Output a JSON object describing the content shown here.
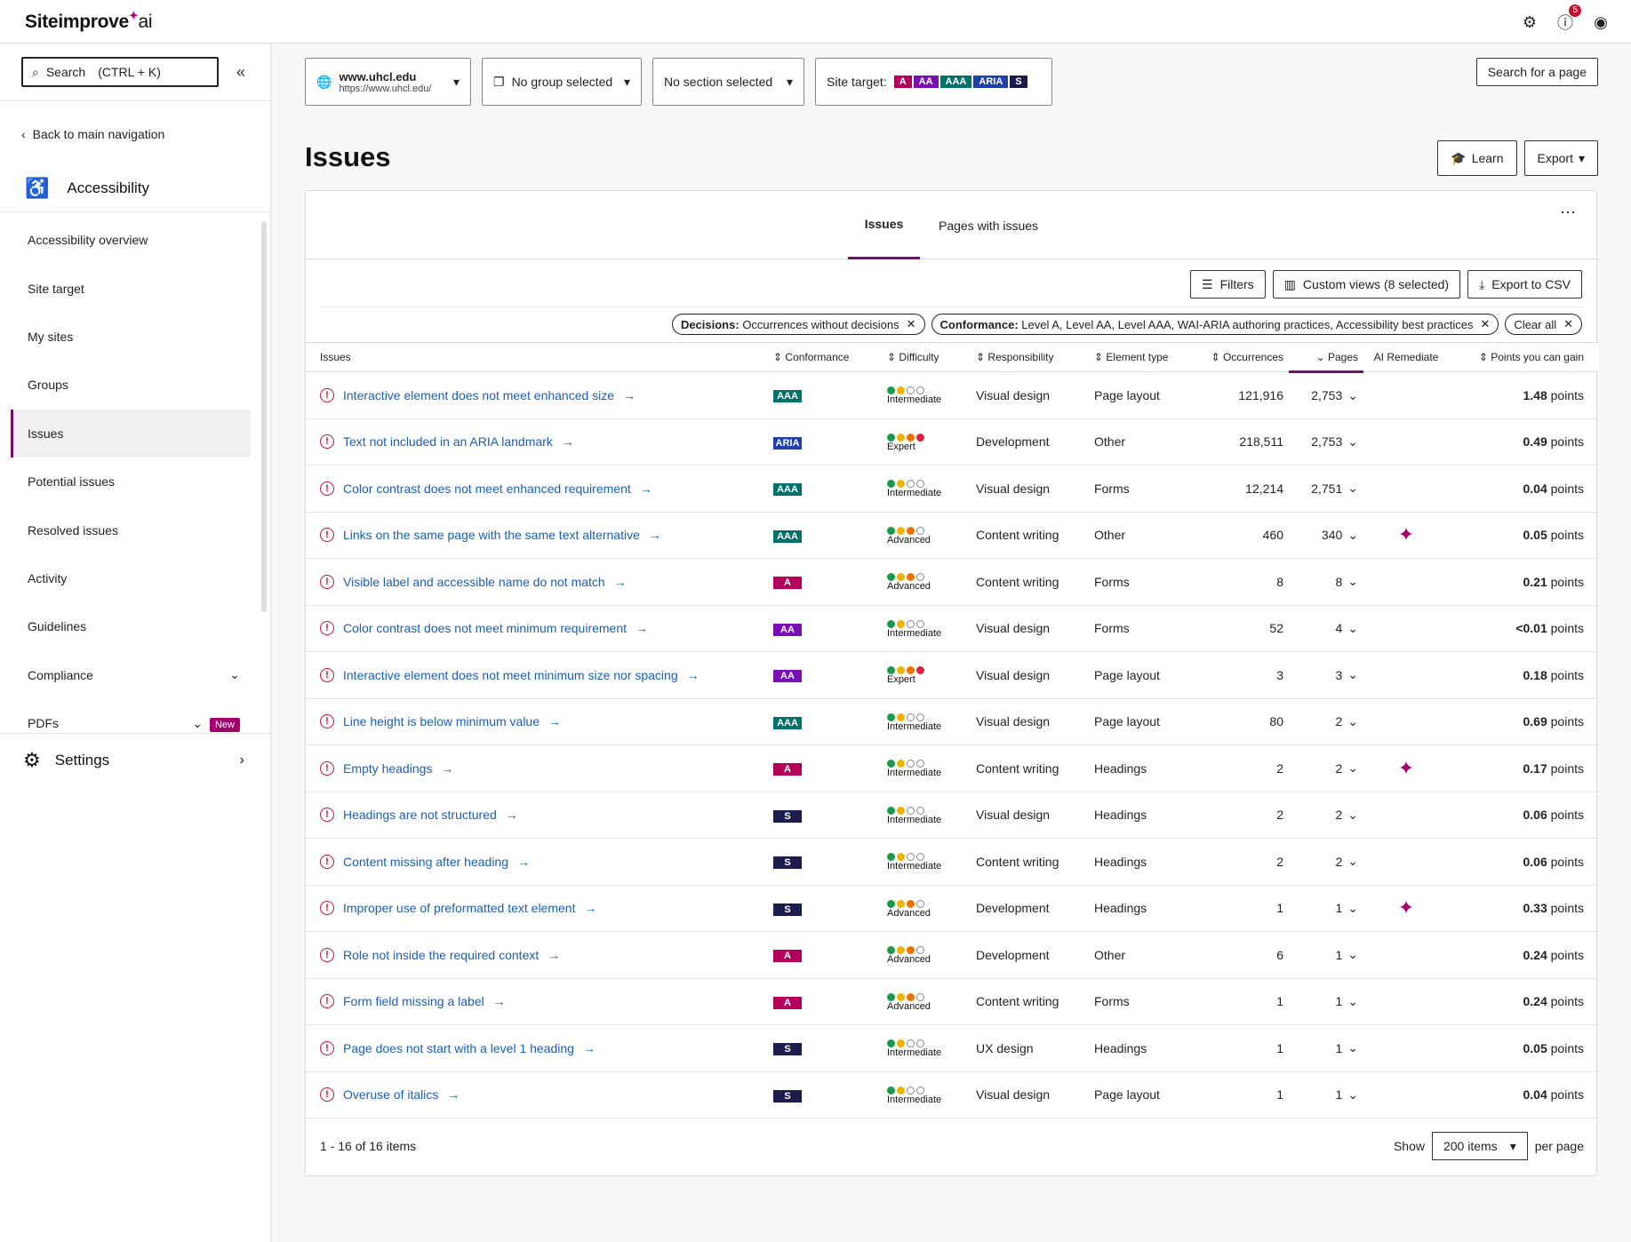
{
  "app": {
    "logo": "Siteimprove",
    "logo_suffix": "ai",
    "notif_count": "5"
  },
  "sidebar": {
    "search_label": "Search",
    "search_shortcut": "(CTRL + K)",
    "back": "Back to main navigation",
    "section": "Accessibility",
    "items": [
      {
        "label": "Accessibility overview"
      },
      {
        "label": "Site target"
      },
      {
        "label": "My sites"
      },
      {
        "label": "Groups"
      },
      {
        "label": "Issues"
      },
      {
        "label": "Potential issues"
      },
      {
        "label": "Resolved issues"
      },
      {
        "label": "Activity"
      },
      {
        "label": "Guidelines"
      },
      {
        "label": "Compliance"
      },
      {
        "label": "PDFs",
        "badge": "New"
      }
    ],
    "settings": "Settings"
  },
  "filters": {
    "site_name": "www.uhcl.edu",
    "site_url": "https://www.uhcl.edu/",
    "group": "No group selected",
    "section": "No section selected",
    "site_target_label": "Site target:",
    "targets": [
      {
        "label": "A",
        "color": "#b5005b"
      },
      {
        "label": "AA",
        "color": "#7a0fb5"
      },
      {
        "label": "AAA",
        "color": "#00716b"
      },
      {
        "label": "ARIA",
        "color": "#1e40af"
      },
      {
        "label": "S",
        "color": "#1c1c4e"
      }
    ],
    "search_page": "Search for a page"
  },
  "page": {
    "title": "Issues",
    "learn": "Learn",
    "export": "Export"
  },
  "tabs": {
    "issues": "Issues",
    "pages": "Pages with issues"
  },
  "tools": {
    "filters": "Filters",
    "custom_views": "Custom views (8 selected)",
    "export_csv": "Export to CSV"
  },
  "chips": {
    "decisions_key": "Decisions:",
    "decisions_val": "Occurrences without decisions",
    "conformance_key": "Conformance:",
    "conformance_val": "Level A, Level AA, Level AAA, WAI-ARIA authoring practices, Accessibility best practices",
    "clear": "Clear all"
  },
  "table": {
    "headers": {
      "issues": "Issues",
      "conformance": "Conformance",
      "difficulty": "Difficulty",
      "responsibility": "Responsibility",
      "element_type": "Element type",
      "occurrences": "Occurrences",
      "pages": "Pages",
      "ai": "AI Remediate",
      "points": "Points you can gain"
    },
    "points_unit": "points",
    "conf_colors": {
      "A": "#b5005b",
      "AA": "#7a0fb5",
      "AAA": "#00716b",
      "ARIA": "#1e40af",
      "S": "#1c1c4e"
    },
    "rows": [
      {
        "issue": "Interactive element does not meet enhanced size",
        "conf": "AAA",
        "diff": "Intermediate",
        "level": 2,
        "resp": "Visual design",
        "elem": "Page layout",
        "occ": "121,916",
        "pages": "2,753",
        "ai": false,
        "points": "1.48"
      },
      {
        "issue": "Text not included in an ARIA landmark",
        "conf": "ARIA",
        "diff": "Expert",
        "level": 4,
        "resp": "Development",
        "elem": "Other",
        "occ": "218,511",
        "pages": "2,753",
        "ai": false,
        "points": "0.49"
      },
      {
        "issue": "Color contrast does not meet enhanced requirement",
        "conf": "AAA",
        "diff": "Intermediate",
        "level": 2,
        "resp": "Visual design",
        "elem": "Forms",
        "occ": "12,214",
        "pages": "2,751",
        "ai": false,
        "points": "0.04"
      },
      {
        "issue": "Links on the same page with the same text alternative",
        "conf": "AAA",
        "diff": "Advanced",
        "level": 3,
        "resp": "Content writing",
        "elem": "Other",
        "occ": "460",
        "pages": "340",
        "ai": true,
        "points": "0.05"
      },
      {
        "issue": "Visible label and accessible name do not match",
        "conf": "A",
        "diff": "Advanced",
        "level": 3,
        "resp": "Content writing",
        "elem": "Forms",
        "occ": "8",
        "pages": "8",
        "ai": false,
        "points": "0.21"
      },
      {
        "issue": "Color contrast does not meet minimum requirement",
        "conf": "AA",
        "diff": "Intermediate",
        "level": 2,
        "resp": "Visual design",
        "elem": "Forms",
        "occ": "52",
        "pages": "4",
        "ai": false,
        "points": "<0.01"
      },
      {
        "issue": "Interactive element does not meet minimum size nor spacing",
        "conf": "AA",
        "diff": "Expert",
        "level": 4,
        "resp": "Visual design",
        "elem": "Page layout",
        "occ": "3",
        "pages": "3",
        "ai": false,
        "points": "0.18"
      },
      {
        "issue": "Line height is below minimum value",
        "conf": "AAA",
        "diff": "Intermediate",
        "level": 2,
        "resp": "Visual design",
        "elem": "Page layout",
        "occ": "80",
        "pages": "2",
        "ai": false,
        "points": "0.69"
      },
      {
        "issue": "Empty headings",
        "conf": "A",
        "diff": "Intermediate",
        "level": 2,
        "resp": "Content writing",
        "elem": "Headings",
        "occ": "2",
        "pages": "2",
        "ai": true,
        "points": "0.17"
      },
      {
        "issue": "Headings are not structured",
        "conf": "S",
        "diff": "Intermediate",
        "level": 2,
        "resp": "Visual design",
        "elem": "Headings",
        "occ": "2",
        "pages": "2",
        "ai": false,
        "points": "0.06"
      },
      {
        "issue": "Content missing after heading",
        "conf": "S",
        "diff": "Intermediate",
        "level": 2,
        "resp": "Content writing",
        "elem": "Headings",
        "occ": "2",
        "pages": "2",
        "ai": false,
        "points": "0.06"
      },
      {
        "issue": "Improper use of preformatted text element",
        "conf": "S",
        "diff": "Advanced",
        "level": 3,
        "resp": "Development",
        "elem": "Headings",
        "occ": "1",
        "pages": "1",
        "ai": true,
        "points": "0.33"
      },
      {
        "issue": "Role not inside the required context",
        "conf": "A",
        "diff": "Advanced",
        "level": 3,
        "resp": "Development",
        "elem": "Other",
        "occ": "6",
        "pages": "1",
        "ai": false,
        "points": "0.24"
      },
      {
        "issue": "Form field missing a label",
        "conf": "A",
        "diff": "Advanced",
        "level": 3,
        "resp": "Content writing",
        "elem": "Forms",
        "occ": "1",
        "pages": "1",
        "ai": false,
        "points": "0.24"
      },
      {
        "issue": "Page does not start with a level 1 heading",
        "conf": "S",
        "diff": "Intermediate",
        "level": 2,
        "resp": "UX design",
        "elem": "Headings",
        "occ": "1",
        "pages": "1",
        "ai": false,
        "points": "0.05"
      },
      {
        "issue": "Overuse of italics",
        "conf": "S",
        "diff": "Intermediate",
        "level": 2,
        "resp": "Visual design",
        "elem": "Page layout",
        "occ": "1",
        "pages": "1",
        "ai": false,
        "points": "0.04"
      }
    ]
  },
  "footer": {
    "count": "1 - 16 of 16 items",
    "show": "Show",
    "per_page_value": "200 items",
    "per_page": "per page"
  },
  "dot_colors": {
    "green": "#1a9a4a",
    "yellow": "#f0b400",
    "orange": "#f07000",
    "red": "#e0203c"
  }
}
